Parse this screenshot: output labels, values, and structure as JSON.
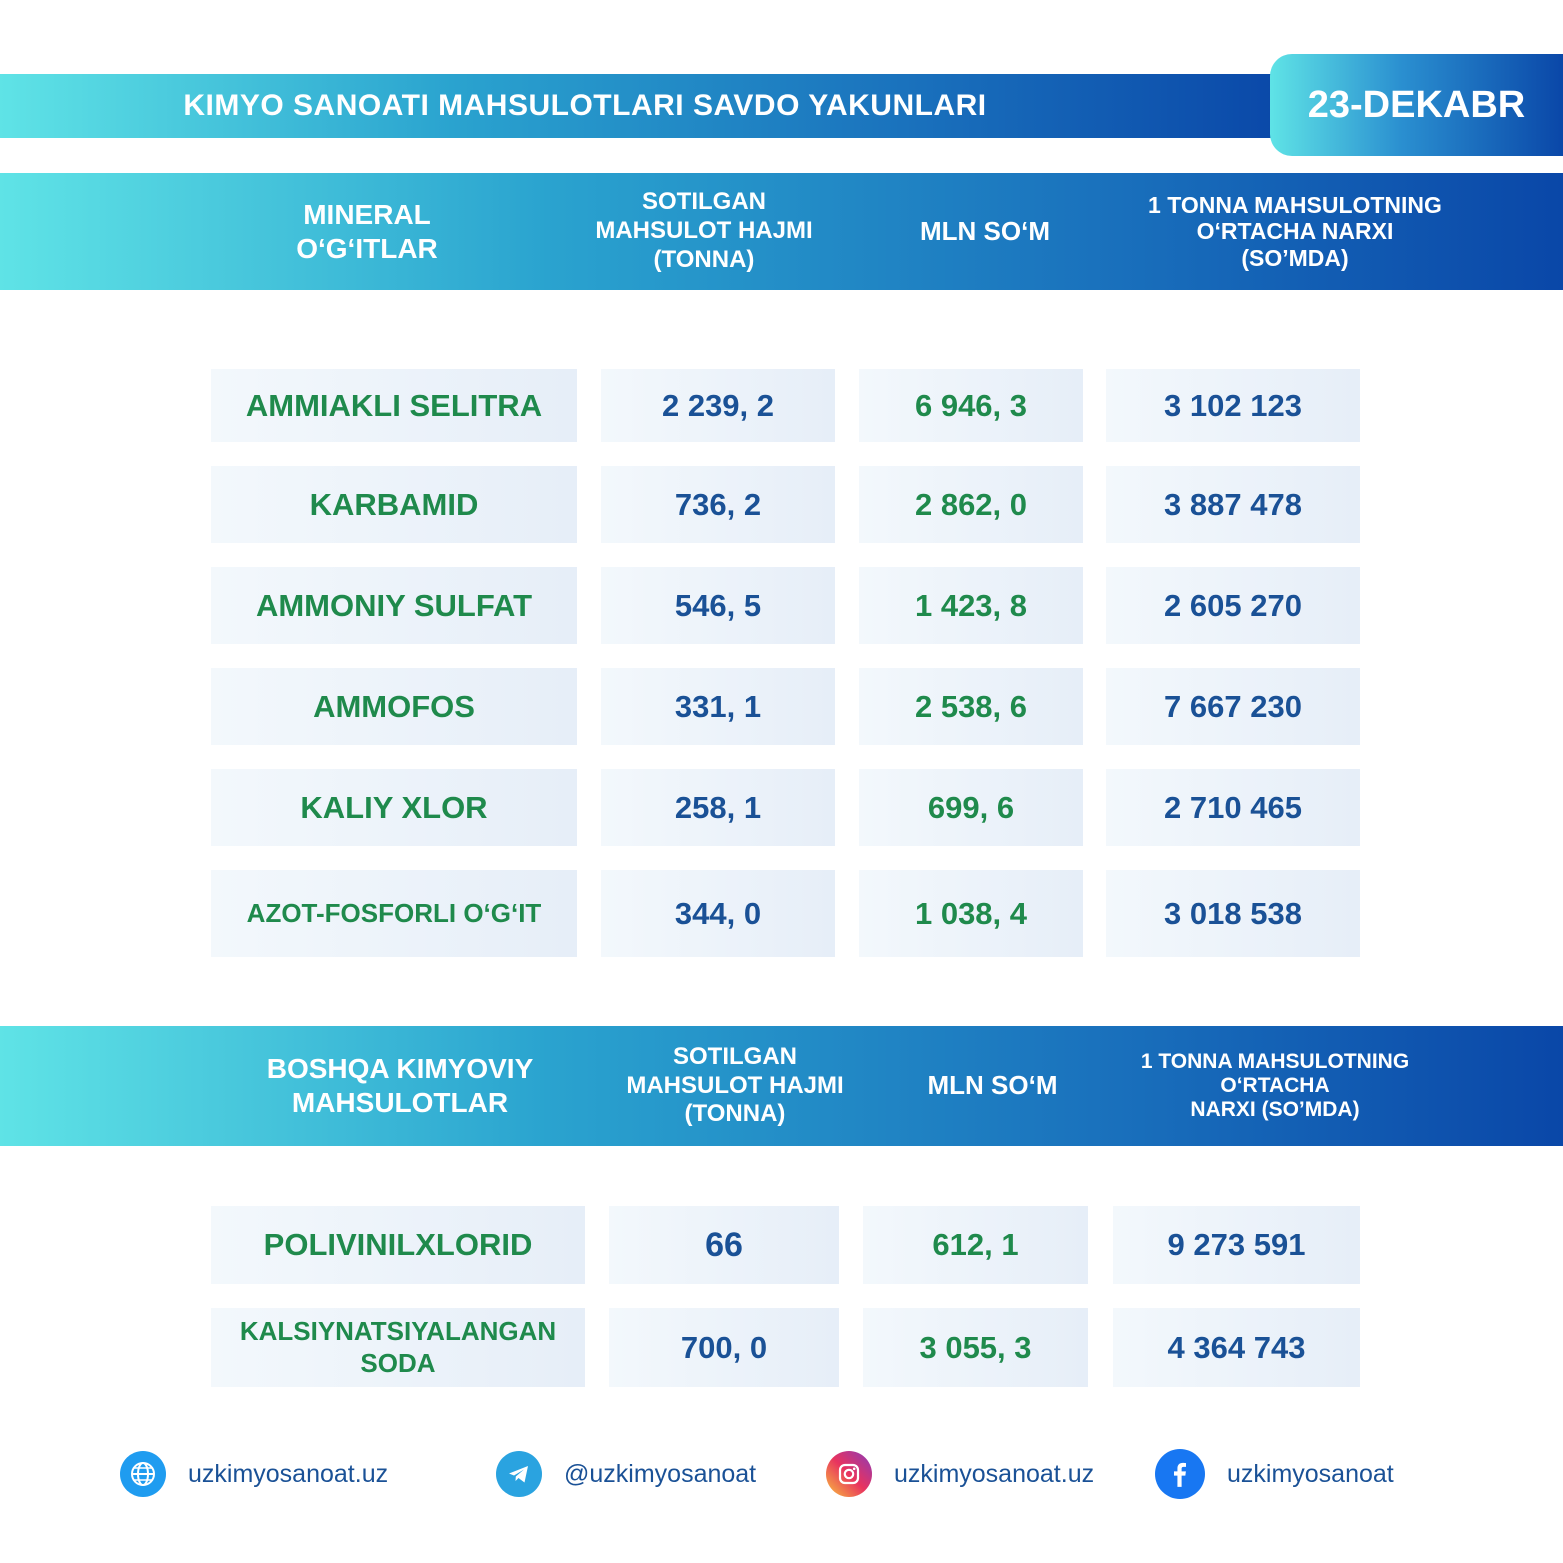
{
  "header": {
    "title": "KIMYO SANOATI MAHSULOTLARI SAVDO YAKUNLARI",
    "date": "23-DEKABR"
  },
  "section1": {
    "col1": "MINERAL\nO‘G‘ITLAR",
    "col2": "SOTILGAN\nMAHSULOT HAJMI\n(TONNA)",
    "col3": "MLN SO‘M",
    "col4": "1 TONNA MAHSULOTNING\nO‘RTACHA NARXI\n(SO’MDA)",
    "rows": [
      {
        "name": "AMMIAKLI SELITRA",
        "volume": "2 239, 2",
        "mln": "6 946, 3",
        "price": "3 102 123"
      },
      {
        "name": "KARBAMID",
        "volume": "736, 2",
        "mln": "2 862, 0",
        "price": "3 887 478"
      },
      {
        "name": "AMMONIY SULFAT",
        "volume": "546, 5",
        "mln": "1 423, 8",
        "price": "2 605 270"
      },
      {
        "name": "AMMOFOS",
        "volume": "331, 1",
        "mln": "2 538, 6",
        "price": "7 667 230"
      },
      {
        "name": "KALIY XLOR",
        "volume": "258, 1",
        "mln": "699, 6",
        "price": "2 710 465"
      },
      {
        "name": "AZOT-FOSFORLI O‘G‘IT",
        "volume": "344, 0",
        "mln": "1 038, 4",
        "price": "3 018 538"
      }
    ]
  },
  "section2": {
    "col1": "BOSHQA KIMYOVIY\nMAHSULOTLAR",
    "col2": "SOTILGAN\nMAHSULOT HAJMI\n(TONNA)",
    "col3": "MLN SO‘M",
    "col4": "1 TONNA MAHSULOTNING\nO‘RTACHA\nNARXI (SO’MDA)",
    "rows": [
      {
        "name": "POLIVINILXLORID",
        "volume": "66",
        "mln": "612, 1",
        "price": "9 273 591"
      },
      {
        "name": "KALSIYNATSIYALANGAN\nSODA",
        "volume": "700, 0",
        "mln": "3 055, 3",
        "price": "4 364 743"
      }
    ]
  },
  "footer": {
    "website": "uzkimyosanoat.uz",
    "telegram": "@uzkimyosanoat",
    "instagram": "uzkimyosanoat.uz",
    "facebook": "uzkimyosanoat"
  },
  "icons": [
    "globe-icon",
    "telegram-icon",
    "instagram-icon",
    "facebook-icon"
  ],
  "colors": {
    "accent_dark": "#0a47a8",
    "accent_light": "#5fe3e6",
    "name_green": "#1f8a4c",
    "number_blue": "#1a5196"
  }
}
